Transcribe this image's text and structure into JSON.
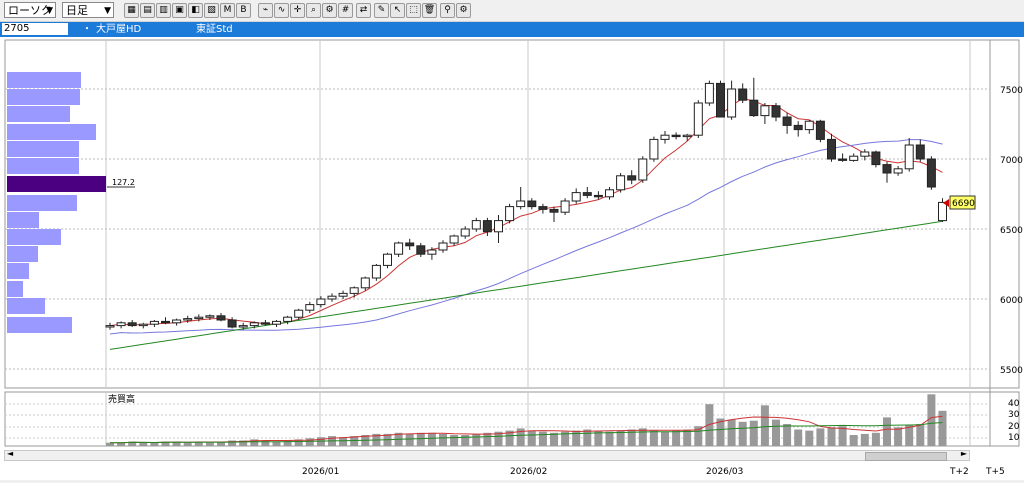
{
  "toolbar": {
    "chart_type_select": "ローソク",
    "period_select": "日足"
  },
  "symbol": {
    "code": "2705",
    "separator": "・",
    "name": "大戸屋HD",
    "market": "東証Std"
  },
  "price_axis": {
    "ticks": [
      "7500",
      "7000",
      "6500",
      "6000",
      "5500"
    ],
    "current_price": "6690"
  },
  "volume_profile": {
    "marker_label": "127.2",
    "highlight_color": "#4b0082",
    "bar_color": "#9999ff"
  },
  "volume_panel": {
    "title": "売買高",
    "ticks": [
      "40",
      "30",
      "20",
      "10"
    ]
  },
  "date_axis": {
    "labels": [
      "2026/01",
      "2026/02",
      "2026/03"
    ],
    "future_labels": [
      "T+2",
      "T+5"
    ]
  },
  "colors": {
    "ma_short": "#cc3333",
    "ma_mid": "#7777dd",
    "ma_long": "#228822",
    "up_candle": "#ffffff",
    "down_candle": "#333333"
  },
  "chart_data": {
    "type": "candlestick",
    "ylim": [
      5400,
      7750
    ],
    "candles": [
      [
        5800,
        5830,
        5780,
        5810
      ],
      [
        5810,
        5840,
        5790,
        5830
      ],
      [
        5830,
        5850,
        5800,
        5810
      ],
      [
        5810,
        5830,
        5790,
        5820
      ],
      [
        5820,
        5850,
        5800,
        5840
      ],
      [
        5840,
        5870,
        5820,
        5830
      ],
      [
        5830,
        5860,
        5810,
        5850
      ],
      [
        5850,
        5880,
        5830,
        5860
      ],
      [
        5860,
        5890,
        5840,
        5870
      ],
      [
        5870,
        5890,
        5850,
        5880
      ],
      [
        5880,
        5900,
        5840,
        5850
      ],
      [
        5850,
        5870,
        5790,
        5800
      ],
      [
        5800,
        5830,
        5780,
        5810
      ],
      [
        5810,
        5840,
        5790,
        5830
      ],
      [
        5830,
        5850,
        5810,
        5820
      ],
      [
        5820,
        5850,
        5800,
        5840
      ],
      [
        5840,
        5880,
        5820,
        5870
      ],
      [
        5870,
        5930,
        5850,
        5920
      ],
      [
        5920,
        5980,
        5900,
        5960
      ],
      [
        5960,
        6020,
        5940,
        6000
      ],
      [
        6000,
        6040,
        5980,
        6020
      ],
      [
        6020,
        6060,
        6000,
        6040
      ],
      [
        6040,
        6090,
        6010,
        6080
      ],
      [
        6080,
        6160,
        6060,
        6150
      ],
      [
        6150,
        6250,
        6130,
        6240
      ],
      [
        6240,
        6330,
        6220,
        6320
      ],
      [
        6320,
        6410,
        6300,
        6400
      ],
      [
        6400,
        6430,
        6350,
        6380
      ],
      [
        6380,
        6400,
        6300,
        6320
      ],
      [
        6320,
        6370,
        6280,
        6350
      ],
      [
        6350,
        6420,
        6330,
        6400
      ],
      [
        6400,
        6460,
        6380,
        6450
      ],
      [
        6450,
        6520,
        6430,
        6500
      ],
      [
        6500,
        6580,
        6480,
        6560
      ],
      [
        6560,
        6580,
        6450,
        6480
      ],
      [
        6480,
        6600,
        6400,
        6560
      ],
      [
        6560,
        6680,
        6540,
        6660
      ],
      [
        6660,
        6800,
        6640,
        6700
      ],
      [
        6700,
        6720,
        6640,
        6660
      ],
      [
        6660,
        6680,
        6610,
        6640
      ],
      [
        6640,
        6660,
        6550,
        6620
      ],
      [
        6620,
        6720,
        6600,
        6700
      ],
      [
        6700,
        6790,
        6680,
        6760
      ],
      [
        6760,
        6800,
        6720,
        6740
      ],
      [
        6740,
        6770,
        6710,
        6730
      ],
      [
        6730,
        6800,
        6710,
        6780
      ],
      [
        6780,
        6900,
        6760,
        6880
      ],
      [
        6880,
        6920,
        6820,
        6850
      ],
      [
        6850,
        7020,
        6830,
        7000
      ],
      [
        7000,
        7160,
        6980,
        7140
      ],
      [
        7140,
        7200,
        7110,
        7170
      ],
      [
        7170,
        7190,
        7140,
        7160
      ],
      [
        7160,
        7180,
        7130,
        7170
      ],
      [
        7170,
        7420,
        7150,
        7400
      ],
      [
        7400,
        7560,
        7380,
        7540
      ],
      [
        7540,
        7560,
        7320,
        7300
      ],
      [
        7300,
        7560,
        7280,
        7500
      ],
      [
        7500,
        7540,
        7400,
        7420
      ],
      [
        7420,
        7580,
        7300,
        7310
      ],
      [
        7310,
        7400,
        7250,
        7380
      ],
      [
        7380,
        7400,
        7270,
        7300
      ],
      [
        7300,
        7330,
        7180,
        7240
      ],
      [
        7240,
        7270,
        7160,
        7210
      ],
      [
        7210,
        7280,
        7180,
        7270
      ],
      [
        7270,
        7280,
        7120,
        7140
      ],
      [
        7140,
        7180,
        6980,
        7000
      ],
      [
        7000,
        7040,
        6980,
        6990
      ],
      [
        6990,
        7040,
        6980,
        7020
      ],
      [
        7020,
        7070,
        6990,
        7050
      ],
      [
        7050,
        7060,
        6940,
        6960
      ],
      [
        6960,
        6980,
        6830,
        6900
      ],
      [
        6900,
        6950,
        6880,
        6930
      ],
      [
        6930,
        7150,
        6910,
        7100
      ],
      [
        7100,
        7140,
        6980,
        7000
      ],
      [
        7000,
        7020,
        6780,
        6800
      ],
      [
        6560,
        6720,
        6550,
        6690
      ]
    ],
    "volumes": [
      3,
      3,
      4,
      3,
      3,
      4,
      4,
      3,
      4,
      3,
      4,
      5,
      5,
      6,
      5,
      4,
      5,
      6,
      7,
      8,
      9,
      8,
      9,
      10,
      11,
      11,
      12,
      11,
      12,
      12,
      11,
      10,
      10,
      11,
      12,
      13,
      14,
      16,
      14,
      13,
      12,
      13,
      14,
      15,
      14,
      13,
      14,
      15,
      16,
      14,
      13,
      14,
      15,
      18,
      38,
      25,
      24,
      22,
      23,
      37,
      24,
      20,
      15,
      14,
      16,
      17,
      18,
      10,
      11,
      12,
      26,
      17,
      19,
      20,
      47,
      32
    ]
  }
}
